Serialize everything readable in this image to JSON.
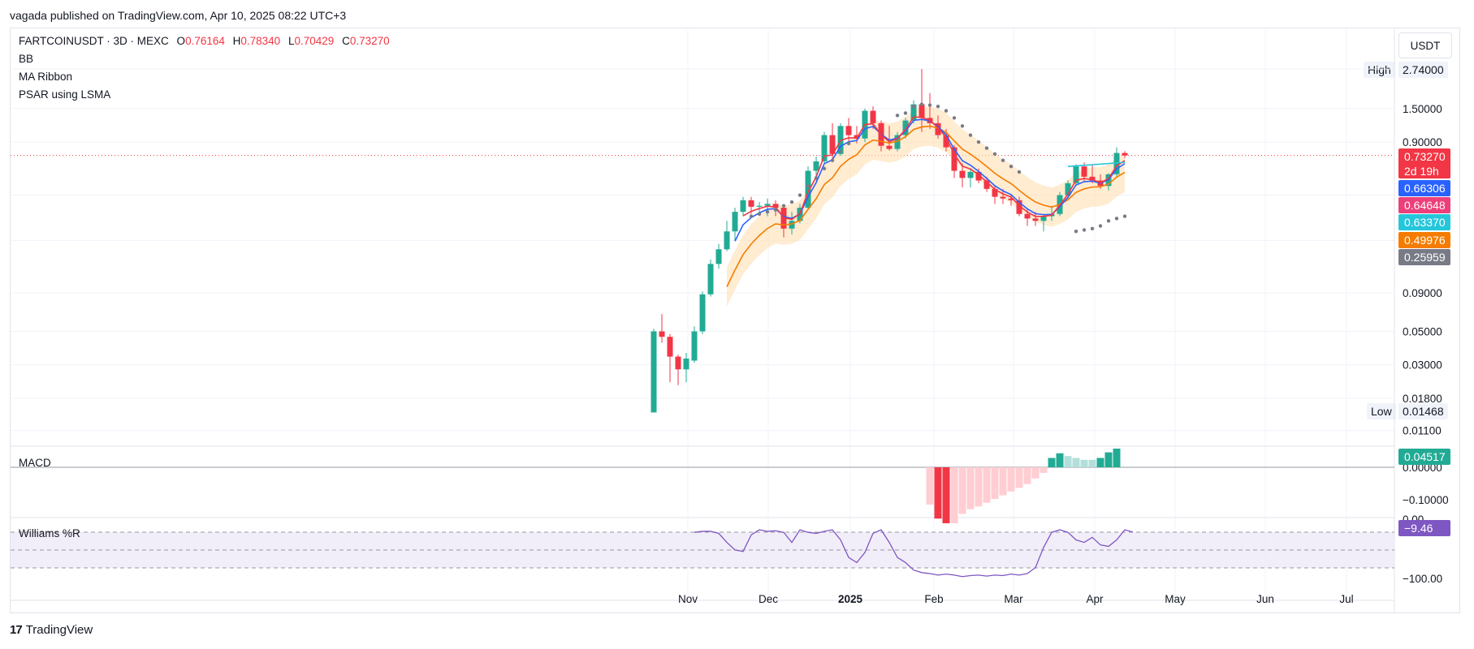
{
  "header": {
    "publisher_line": "vagada published on TradingView.com, Apr 10, 2025 08:22 UTC+3"
  },
  "legend": {
    "symbol": "FARTCOINUSDT · 3D · MEXC",
    "o_key": "O",
    "o_val": "0.76164",
    "h_key": "H",
    "h_val": "0.78340",
    "l_key": "L",
    "l_val": "0.70429",
    "c_key": "C",
    "c_val": "0.73270",
    "indicators": [
      "BB",
      "MA Ribbon",
      "PSAR using LSMA"
    ]
  },
  "price_axis": {
    "unit": "USDT",
    "high_label": "High",
    "high_value": "2.74000",
    "low_label": "Low",
    "low_value": "0.01468",
    "ticks": [
      "1.50000",
      "0.90000",
      "0.09000",
      "0.05000",
      "0.03000",
      "0.01800",
      "0.01100"
    ]
  },
  "price_tags": [
    {
      "value": "0.73270",
      "sub": "2d 19h",
      "color": "#f23645"
    },
    {
      "value": "0.66306",
      "color": "#2962ff"
    },
    {
      "value": "0.64648",
      "color": "#ec407a"
    },
    {
      "value": "0.63370",
      "color": "#26c6da"
    },
    {
      "value": "0.49976",
      "color": "#f57c00"
    },
    {
      "value": "0.25959",
      "color": "#787b86"
    }
  ],
  "macd": {
    "label": "MACD",
    "value_tag": "0.04517",
    "value_color": "#22ab94",
    "ticks": [
      "0.00000",
      "−0.10000"
    ]
  },
  "williams": {
    "label": "Williams %R",
    "value_tag": "−9.46",
    "value_color": "#7e57c2",
    "ticks": [
      "0.00",
      "−100.00"
    ]
  },
  "time_axis": {
    "labels": [
      "Nov",
      "Dec",
      "2025",
      "Feb",
      "Mar",
      "Apr",
      "May",
      "Jun",
      "Jul"
    ]
  },
  "footer": {
    "brand": "TradingView"
  },
  "chart_data": {
    "type": "candlestick",
    "symbol": "FARTCOINUSDT",
    "timeframe": "3D",
    "exchange": "MEXC",
    "price_scale": "log",
    "y_range": [
      0.0085,
      3.2
    ],
    "candles": [
      {
        "o": 0.0145,
        "h": 0.052,
        "l": 0.0145,
        "c": 0.05
      },
      {
        "o": 0.05,
        "h": 0.065,
        "l": 0.042,
        "c": 0.046
      },
      {
        "o": 0.046,
        "h": 0.048,
        "l": 0.023,
        "c": 0.034
      },
      {
        "o": 0.034,
        "h": 0.035,
        "l": 0.022,
        "c": 0.028
      },
      {
        "o": 0.028,
        "h": 0.036,
        "l": 0.023,
        "c": 0.033
      },
      {
        "o": 0.032,
        "h": 0.054,
        "l": 0.031,
        "c": 0.05
      },
      {
        "o": 0.05,
        "h": 0.092,
        "l": 0.048,
        "c": 0.088
      },
      {
        "o": 0.088,
        "h": 0.15,
        "l": 0.085,
        "c": 0.14
      },
      {
        "o": 0.14,
        "h": 0.19,
        "l": 0.13,
        "c": 0.175
      },
      {
        "o": 0.175,
        "h": 0.27,
        "l": 0.17,
        "c": 0.23
      },
      {
        "o": 0.23,
        "h": 0.33,
        "l": 0.2,
        "c": 0.31
      },
      {
        "o": 0.31,
        "h": 0.39,
        "l": 0.29,
        "c": 0.37
      },
      {
        "o": 0.37,
        "h": 0.39,
        "l": 0.3,
        "c": 0.335
      },
      {
        "o": 0.335,
        "h": 0.36,
        "l": 0.3,
        "c": 0.34
      },
      {
        "o": 0.34,
        "h": 0.38,
        "l": 0.29,
        "c": 0.35
      },
      {
        "o": 0.35,
        "h": 0.37,
        "l": 0.29,
        "c": 0.33
      },
      {
        "o": 0.33,
        "h": 0.34,
        "l": 0.21,
        "c": 0.24
      },
      {
        "o": 0.24,
        "h": 0.31,
        "l": 0.22,
        "c": 0.27
      },
      {
        "o": 0.27,
        "h": 0.35,
        "l": 0.26,
        "c": 0.33
      },
      {
        "o": 0.33,
        "h": 0.62,
        "l": 0.32,
        "c": 0.58
      },
      {
        "o": 0.58,
        "h": 0.72,
        "l": 0.5,
        "c": 0.67
      },
      {
        "o": 0.67,
        "h": 1.05,
        "l": 0.65,
        "c": 1.0
      },
      {
        "o": 1.0,
        "h": 1.2,
        "l": 0.68,
        "c": 0.75
      },
      {
        "o": 0.75,
        "h": 1.2,
        "l": 0.73,
        "c": 1.15
      },
      {
        "o": 1.15,
        "h": 1.3,
        "l": 0.9,
        "c": 1.0
      },
      {
        "o": 1.0,
        "h": 1.15,
        "l": 0.88,
        "c": 0.95
      },
      {
        "o": 0.95,
        "h": 1.5,
        "l": 0.9,
        "c": 1.45
      },
      {
        "o": 1.45,
        "h": 1.55,
        "l": 1.1,
        "c": 1.2
      },
      {
        "o": 1.2,
        "h": 1.25,
        "l": 0.78,
        "c": 0.85
      },
      {
        "o": 0.85,
        "h": 1.15,
        "l": 0.79,
        "c": 0.81
      },
      {
        "o": 0.81,
        "h": 1.05,
        "l": 0.78,
        "c": 1.0
      },
      {
        "o": 1.0,
        "h": 1.3,
        "l": 0.95,
        "c": 1.25
      },
      {
        "o": 1.25,
        "h": 1.7,
        "l": 1.2,
        "c": 1.6
      },
      {
        "o": 1.6,
        "h": 2.74,
        "l": 1.05,
        "c": 1.3
      },
      {
        "o": 1.3,
        "h": 1.9,
        "l": 1.1,
        "c": 1.2
      },
      {
        "o": 1.2,
        "h": 1.35,
        "l": 0.95,
        "c": 1.0
      },
      {
        "o": 1.0,
        "h": 1.1,
        "l": 0.78,
        "c": 0.83
      },
      {
        "o": 0.83,
        "h": 0.86,
        "l": 0.52,
        "c": 0.58
      },
      {
        "o": 0.58,
        "h": 0.65,
        "l": 0.45,
        "c": 0.52
      },
      {
        "o": 0.52,
        "h": 0.6,
        "l": 0.45,
        "c": 0.57
      },
      {
        "o": 0.57,
        "h": 0.6,
        "l": 0.48,
        "c": 0.5
      },
      {
        "o": 0.5,
        "h": 0.53,
        "l": 0.42,
        "c": 0.44
      },
      {
        "o": 0.44,
        "h": 0.46,
        "l": 0.35,
        "c": 0.39
      },
      {
        "o": 0.39,
        "h": 0.44,
        "l": 0.35,
        "c": 0.38
      },
      {
        "o": 0.38,
        "h": 0.4,
        "l": 0.34,
        "c": 0.37
      },
      {
        "o": 0.37,
        "h": 0.39,
        "l": 0.29,
        "c": 0.3
      },
      {
        "o": 0.3,
        "h": 0.32,
        "l": 0.25,
        "c": 0.28
      },
      {
        "o": 0.28,
        "h": 0.31,
        "l": 0.25,
        "c": 0.27
      },
      {
        "o": 0.27,
        "h": 0.3,
        "l": 0.23,
        "c": 0.29
      },
      {
        "o": 0.29,
        "h": 0.34,
        "l": 0.27,
        "c": 0.3
      },
      {
        "o": 0.3,
        "h": 0.42,
        "l": 0.29,
        "c": 0.4
      },
      {
        "o": 0.4,
        "h": 0.5,
        "l": 0.38,
        "c": 0.48
      },
      {
        "o": 0.48,
        "h": 0.64,
        "l": 0.46,
        "c": 0.62
      },
      {
        "o": 0.62,
        "h": 0.66,
        "l": 0.49,
        "c": 0.53
      },
      {
        "o": 0.53,
        "h": 0.63,
        "l": 0.48,
        "c": 0.5
      },
      {
        "o": 0.5,
        "h": 0.55,
        "l": 0.44,
        "c": 0.46
      },
      {
        "o": 0.46,
        "h": 0.56,
        "l": 0.43,
        "c": 0.55
      },
      {
        "o": 0.55,
        "h": 0.83,
        "l": 0.52,
        "c": 0.7616
      },
      {
        "o": 0.7616,
        "h": 0.7834,
        "l": 0.7043,
        "c": 0.7327
      }
    ],
    "macd_histogram": [
      -0.04,
      -0.055,
      -0.06,
      -0.06,
      -0.05,
      -0.045,
      -0.042,
      -0.038,
      -0.034,
      -0.03,
      -0.026,
      -0.022,
      -0.018,
      -0.012,
      -0.006,
      0.01,
      0.015,
      0.012,
      0.01,
      0.008,
      0.008,
      0.01,
      0.016,
      0.02
    ],
    "williams_r": [
      -10,
      -8,
      -8,
      -12,
      -30,
      -45,
      -48,
      -15,
      -5,
      -8,
      -7,
      -10,
      -30,
      -5,
      -10,
      -12,
      -8,
      -5,
      -25,
      -60,
      -70,
      -50,
      -12,
      -5,
      -30,
      -60,
      -70,
      -85,
      -90,
      -92,
      -95,
      -93,
      -95,
      -98,
      -96,
      -95,
      -97,
      -95,
      -96,
      -93,
      -95,
      -92,
      -80,
      -40,
      -10,
      -5,
      -10,
      -25,
      -30,
      -20,
      -35,
      -38,
      -25,
      -5,
      -9.46
    ]
  }
}
